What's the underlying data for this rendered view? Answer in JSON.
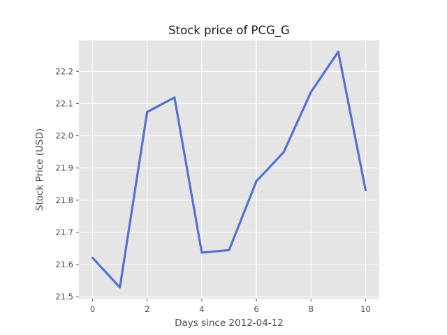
{
  "chart_data": {
    "type": "line",
    "title": "Stock price of PCG_G",
    "xlabel": "Days since 2012-04-12",
    "ylabel": "Stock Price (USD)",
    "x": [
      0,
      1,
      2,
      3,
      4,
      5,
      6,
      7,
      8,
      9,
      10
    ],
    "series": [
      {
        "values": [
          21.621,
          21.529,
          22.074,
          22.119,
          21.637,
          21.645,
          21.859,
          21.949,
          22.136,
          22.261,
          21.831
        ]
      }
    ],
    "xlim": [
      -0.5,
      10.5
    ],
    "ylim": [
      21.494,
      22.296
    ],
    "xticks": [
      0,
      2,
      4,
      6,
      8,
      10
    ],
    "yticks": [
      21.5,
      21.6,
      21.7,
      21.8,
      21.9,
      22.0,
      22.1,
      22.2
    ],
    "xtick_labels": [
      "0",
      "2",
      "4",
      "6",
      "8",
      "10"
    ],
    "ytick_labels": [
      "21.5",
      "21.6",
      "21.7",
      "21.8",
      "21.9",
      "22.0",
      "22.1",
      "22.2"
    ],
    "grid": true,
    "style": "ggplot",
    "colors": {
      "line": "#5470d1",
      "background": "#e5e5e5",
      "grid": "#ffffff"
    }
  }
}
